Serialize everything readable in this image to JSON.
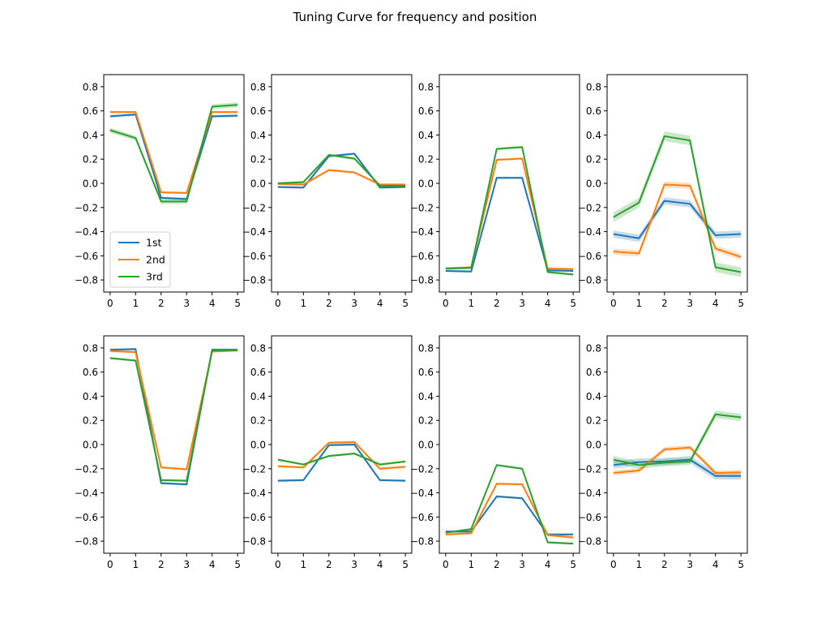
{
  "figure": {
    "title": "Tuning Curve for frequency and position"
  },
  "colors": {
    "1st": "#1f77b4",
    "2nd": "#ff7f0e",
    "3rd": "#2ca02c"
  },
  "chart_data": [
    {
      "type": "line",
      "x": [
        0,
        1,
        2,
        3,
        4,
        5
      ],
      "xticks": [
        "0",
        "1",
        "2",
        "3",
        "4",
        "5"
      ],
      "ylim": [
        -0.9,
        0.9
      ],
      "yticks": [
        "−0.8",
        "−0.6",
        "−0.4",
        "−0.2",
        "0.0",
        "0.2",
        "0.4",
        "0.6",
        "0.8"
      ],
      "legend": {
        "placement": "lower-left",
        "entries": [
          "1st",
          "2nd",
          "3rd"
        ]
      },
      "series": [
        {
          "name": "1st",
          "values": [
            0.555,
            0.57,
            -0.12,
            -0.13,
            0.555,
            0.56
          ],
          "band": 0.012
        },
        {
          "name": "2nd",
          "values": [
            0.59,
            0.59,
            -0.075,
            -0.08,
            0.59,
            0.59
          ],
          "band": 0.01
        },
        {
          "name": "3rd",
          "values": [
            0.44,
            0.375,
            -0.15,
            -0.15,
            0.635,
            0.65
          ],
          "band": 0.02
        }
      ]
    },
    {
      "type": "line",
      "x": [
        0,
        1,
        2,
        3,
        4,
        5
      ],
      "xticks": [
        "0",
        "1",
        "2",
        "3",
        "4",
        "5"
      ],
      "ylim": [
        -0.9,
        0.9
      ],
      "yticks": [
        "−0.8",
        "−0.6",
        "−0.4",
        "−0.2",
        "0.0",
        "0.2",
        "0.4",
        "0.6",
        "0.8"
      ],
      "series": [
        {
          "name": "1st",
          "values": [
            -0.03,
            -0.035,
            0.225,
            0.245,
            -0.035,
            -0.03
          ],
          "band": 0.01
        },
        {
          "name": "2nd",
          "values": [
            -0.005,
            -0.01,
            0.11,
            0.09,
            -0.01,
            -0.01
          ],
          "band": 0.01
        },
        {
          "name": "3rd",
          "values": [
            0.0,
            0.01,
            0.235,
            0.205,
            -0.02,
            -0.02
          ],
          "band": 0.01
        }
      ]
    },
    {
      "type": "line",
      "x": [
        0,
        1,
        2,
        3,
        4,
        5
      ],
      "xticks": [
        "0",
        "1",
        "2",
        "3",
        "4",
        "5"
      ],
      "ylim": [
        -0.9,
        0.9
      ],
      "yticks": [
        "−0.8",
        "−0.6",
        "−0.4",
        "−0.2",
        "0.0",
        "0.2",
        "0.4",
        "0.6",
        "0.8"
      ],
      "series": [
        {
          "name": "1st",
          "values": [
            -0.725,
            -0.73,
            0.045,
            0.045,
            -0.72,
            -0.725
          ],
          "band": 0.01
        },
        {
          "name": "2nd",
          "values": [
            -0.705,
            -0.695,
            0.195,
            0.205,
            -0.705,
            -0.71
          ],
          "band": 0.01
        },
        {
          "name": "3rd",
          "values": [
            -0.705,
            -0.7,
            0.285,
            0.3,
            -0.735,
            -0.755
          ],
          "band": 0.01
        }
      ]
    },
    {
      "type": "line",
      "x": [
        0,
        1,
        2,
        3,
        4,
        5
      ],
      "xticks": [
        "0",
        "1",
        "2",
        "3",
        "4",
        "5"
      ],
      "ylim": [
        -0.9,
        0.9
      ],
      "yticks": [
        "−0.8",
        "−0.6",
        "−0.4",
        "−0.2",
        "0.0",
        "0.2",
        "0.4",
        "0.6",
        "0.8"
      ],
      "series": [
        {
          "name": "1st",
          "values": [
            -0.42,
            -0.455,
            -0.145,
            -0.17,
            -0.43,
            -0.42
          ],
          "band": 0.03
        },
        {
          "name": "2nd",
          "values": [
            -0.565,
            -0.58,
            -0.01,
            -0.02,
            -0.54,
            -0.61
          ],
          "band": 0.025
        },
        {
          "name": "3rd",
          "values": [
            -0.28,
            -0.16,
            0.39,
            0.355,
            -0.695,
            -0.735
          ],
          "band": 0.04
        }
      ]
    },
    {
      "type": "line",
      "x": [
        0,
        1,
        2,
        3,
        4,
        5
      ],
      "xticks": [
        "0",
        "1",
        "2",
        "3",
        "4",
        "5"
      ],
      "ylim": [
        -0.9,
        0.9
      ],
      "yticks": [
        "−0.8",
        "−0.6",
        "−0.4",
        "−0.2",
        "0.0",
        "0.2",
        "0.4",
        "0.6",
        "0.8"
      ],
      "series": [
        {
          "name": "1st",
          "values": [
            0.785,
            0.79,
            -0.32,
            -0.33,
            0.785,
            0.785
          ],
          "band": 0.01
        },
        {
          "name": "2nd",
          "values": [
            0.775,
            0.765,
            -0.19,
            -0.205,
            0.77,
            0.78
          ],
          "band": 0.01
        },
        {
          "name": "3rd",
          "values": [
            0.715,
            0.695,
            -0.295,
            -0.3,
            0.78,
            0.78
          ],
          "band": 0.01
        }
      ]
    },
    {
      "type": "line",
      "x": [
        0,
        1,
        2,
        3,
        4,
        5
      ],
      "xticks": [
        "0",
        "1",
        "2",
        "3",
        "4",
        "5"
      ],
      "ylim": [
        -0.9,
        0.9
      ],
      "yticks": [
        "−0.8",
        "−0.6",
        "−0.4",
        "−0.2",
        "0.0",
        "0.2",
        "0.4",
        "0.6",
        "0.8"
      ],
      "series": [
        {
          "name": "1st",
          "values": [
            -0.3,
            -0.295,
            -0.005,
            0.0,
            -0.295,
            -0.3
          ],
          "band": 0.01
        },
        {
          "name": "2nd",
          "values": [
            -0.18,
            -0.19,
            0.015,
            0.02,
            -0.2,
            -0.185
          ],
          "band": 0.01
        },
        {
          "name": "3rd",
          "values": [
            -0.125,
            -0.165,
            -0.095,
            -0.075,
            -0.165,
            -0.14
          ],
          "band": 0.01
        }
      ]
    },
    {
      "type": "line",
      "x": [
        0,
        1,
        2,
        3,
        4,
        5
      ],
      "xticks": [
        "0",
        "1",
        "2",
        "3",
        "4",
        "5"
      ],
      "ylim": [
        -0.9,
        0.9
      ],
      "yticks": [
        "−0.8",
        "−0.6",
        "−0.4",
        "−0.2",
        "0.0",
        "0.2",
        "0.4",
        "0.6",
        "0.8"
      ],
      "series": [
        {
          "name": "1st",
          "values": [
            -0.72,
            -0.72,
            -0.43,
            -0.445,
            -0.745,
            -0.745
          ],
          "band": 0.01
        },
        {
          "name": "2nd",
          "values": [
            -0.745,
            -0.735,
            -0.325,
            -0.33,
            -0.75,
            -0.77
          ],
          "band": 0.01
        },
        {
          "name": "3rd",
          "values": [
            -0.73,
            -0.7,
            -0.17,
            -0.2,
            -0.81,
            -0.82
          ],
          "band": 0.01
        }
      ]
    },
    {
      "type": "line",
      "x": [
        0,
        1,
        2,
        3,
        4,
        5
      ],
      "xticks": [
        "0",
        "1",
        "2",
        "3",
        "4",
        "5"
      ],
      "ylim": [
        -0.9,
        0.9
      ],
      "yticks": [
        "−0.8",
        "−0.6",
        "−0.4",
        "−0.2",
        "0.0",
        "0.2",
        "0.4",
        "0.6",
        "0.8"
      ],
      "series": [
        {
          "name": "1st",
          "values": [
            -0.17,
            -0.145,
            -0.14,
            -0.125,
            -0.26,
            -0.26
          ],
          "band": 0.03
        },
        {
          "name": "2nd",
          "values": [
            -0.235,
            -0.215,
            -0.04,
            -0.025,
            -0.235,
            -0.23
          ],
          "band": 0.02
        },
        {
          "name": "3rd",
          "values": [
            -0.125,
            -0.17,
            -0.15,
            -0.14,
            0.25,
            0.225
          ],
          "band": 0.03
        }
      ]
    }
  ]
}
